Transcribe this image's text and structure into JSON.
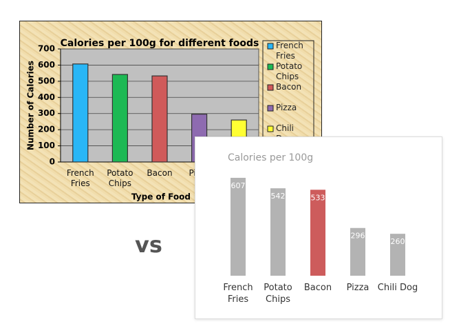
{
  "chart_data": [
    {
      "type": "bar",
      "title": "Calories per 100g for different foods",
      "x_label": "Type of Food",
      "y_label": "Number of Calories",
      "categories": [
        "French Fries",
        "Potato Chips",
        "Bacon",
        "Pizza",
        "Chili Dog"
      ],
      "values": [
        607,
        542,
        533,
        296,
        260
      ],
      "colors": [
        "#29b6f6",
        "#1db954",
        "#d05a5a",
        "#8e6bb0",
        "#ffff33"
      ],
      "ylim": [
        0,
        700
      ],
      "yticks": [
        0,
        100,
        200,
        300,
        400,
        500,
        600,
        700
      ],
      "grid": true,
      "legend": "right"
    },
    {
      "type": "bar",
      "title": "Calories per 100g",
      "categories": [
        "French Fries",
        "Potato Chips",
        "Bacon",
        "Pizza",
        "Chili Dog"
      ],
      "values": [
        607,
        542,
        533,
        296,
        260
      ],
      "colors": [
        "#b3b3b3",
        "#b3b3b3",
        "#cd5c5c",
        "#b3b3b3",
        "#b3b3b3"
      ]
    }
  ],
  "separator": "vs"
}
